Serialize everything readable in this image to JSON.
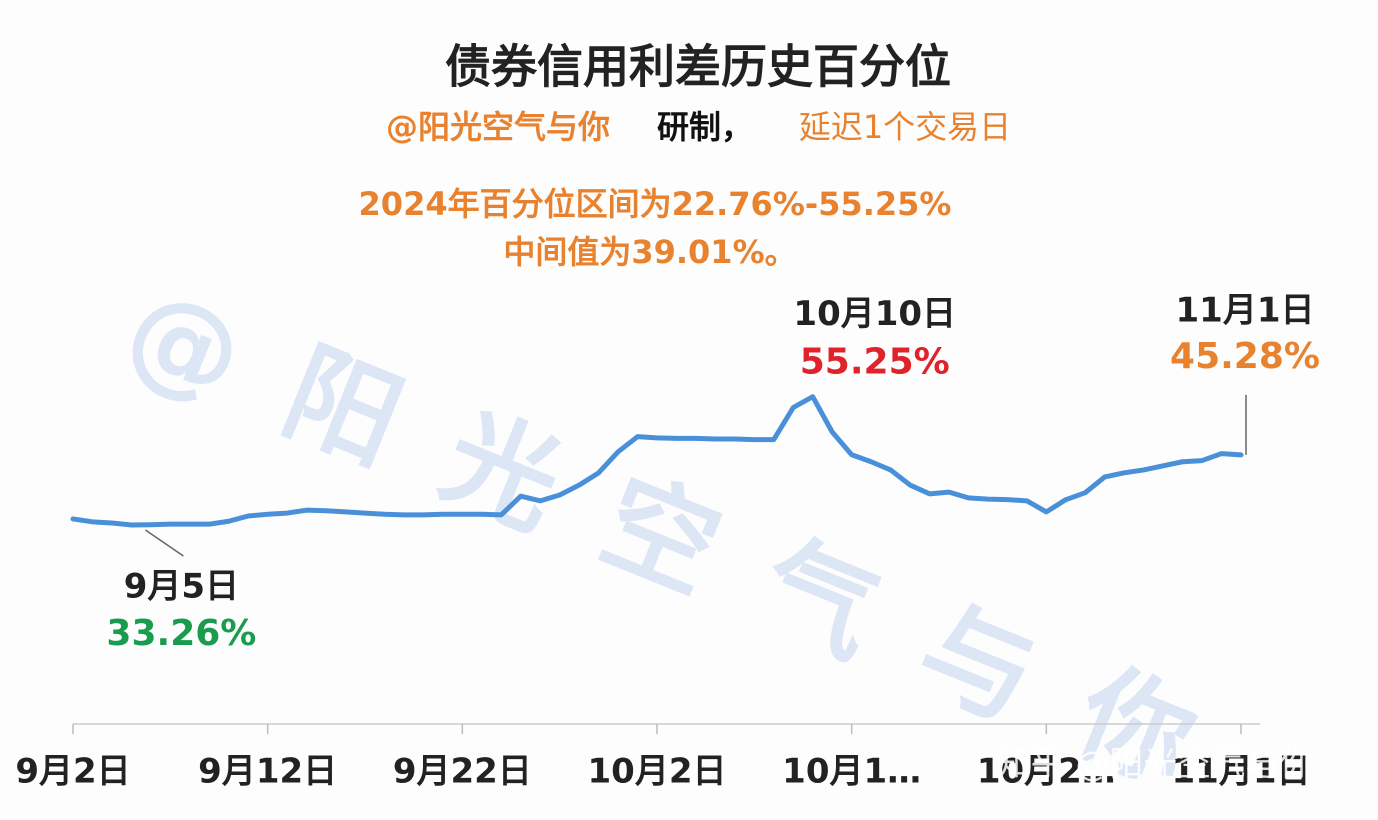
{
  "chart_data": {
    "type": "line",
    "title": "债券信用利差历史百分位",
    "subtitle_author": "@阳光空气与你",
    "subtitle_made": "研制，",
    "subtitle_delay": "延迟1个交易日",
    "notes": [
      "2024年百分位区间为22.76%-55.25%",
      "中间值为39.01%。"
    ],
    "watermark": "@ 阳 光 空 气 与 你",
    "site_watermark": "知乎 @阳光空气与你",
    "categories": [
      "9月2日",
      null,
      null,
      null,
      null,
      null,
      null,
      null,
      null,
      null,
      "9月12日",
      null,
      null,
      null,
      null,
      null,
      null,
      null,
      null,
      null,
      "9月22日",
      null,
      null,
      null,
      null,
      null,
      null,
      null,
      null,
      null,
      "10月2日",
      null,
      null,
      null,
      null,
      null,
      null,
      null,
      null,
      null,
      "10月1…",
      null,
      null,
      null,
      null,
      null,
      null,
      null,
      null,
      null,
      "10月2…",
      null,
      null,
      null,
      null,
      null,
      null,
      null,
      null,
      null,
      "11月1日"
    ],
    "values": [
      34.3,
      33.8,
      33.6,
      33.26,
      33.3,
      33.4,
      33.4,
      33.4,
      33.9,
      34.8,
      35.1,
      35.3,
      35.8,
      35.7,
      35.5,
      35.3,
      35.1,
      35.0,
      35.0,
      35.1,
      35.1,
      35.1,
      35.0,
      38.2,
      37.4,
      38.4,
      40.1,
      42.2,
      45.8,
      48.4,
      48.2,
      48.1,
      48.1,
      48.0,
      48.0,
      47.9,
      47.9,
      53.4,
      55.25,
      49.2,
      45.3,
      44.1,
      42.7,
      40.1,
      38.6,
      38.9,
      37.9,
      37.7,
      37.6,
      37.4,
      35.5,
      37.6,
      38.8,
      41.5,
      42.2,
      42.7,
      43.4,
      44.1,
      44.3,
      45.5,
      45.28
    ],
    "value_labels": [
      null,
      null,
      null,
      "33.26%",
      null,
      null,
      null,
      null,
      null,
      null,
      null,
      null,
      null,
      null,
      null,
      null,
      null,
      null,
      null,
      null,
      null,
      null,
      null,
      null,
      null,
      null,
      null,
      null,
      null,
      null,
      null,
      null,
      null,
      null,
      null,
      null,
      null,
      null,
      "55.25%",
      null,
      null,
      null,
      null,
      null,
      null,
      null,
      null,
      null,
      null,
      null,
      null,
      null,
      null,
      null,
      null,
      null,
      null,
      null,
      null,
      null,
      "45.28%"
    ],
    "value_label_dates": [
      null,
      null,
      null,
      "9月5日",
      null,
      null,
      null,
      null,
      null,
      null,
      null,
      null,
      null,
      null,
      null,
      null,
      null,
      null,
      null,
      null,
      null,
      null,
      null,
      null,
      null,
      null,
      null,
      null,
      null,
      null,
      null,
      null,
      null,
      null,
      null,
      null,
      null,
      null,
      "10月10日",
      null,
      null,
      null,
      null,
      null,
      null,
      null,
      null,
      null,
      null,
      null,
      null,
      null,
      null,
      null,
      null,
      null,
      null,
      null,
      null,
      null,
      "11月1日"
    ],
    "value_label_colors": [
      null,
      null,
      null,
      "#1a9c4e",
      null,
      null,
      null,
      null,
      null,
      null,
      null,
      null,
      null,
      null,
      null,
      null,
      null,
      null,
      null,
      null,
      null,
      null,
      null,
      null,
      null,
      null,
      null,
      null,
      null,
      null,
      null,
      null,
      null,
      null,
      null,
      null,
      null,
      null,
      "#e0222a",
      null,
      null,
      null,
      null,
      null,
      null,
      null,
      null,
      null,
      null,
      null,
      null,
      null,
      null,
      null,
      null,
      null,
      null,
      null,
      null,
      null,
      "#e8822e"
    ],
    "color": "#4a90d9",
    "ylim": [
      0,
      60
    ]
  }
}
